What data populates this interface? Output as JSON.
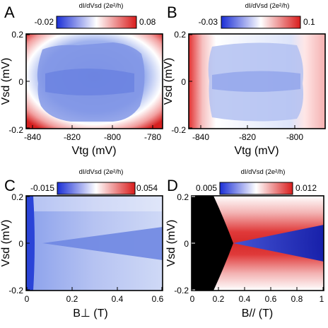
{
  "figure": {
    "panel_labels": [
      "A",
      "B",
      "C",
      "D"
    ],
    "colormap": {
      "low": "#1b2fd6",
      "mid": "#ffffff",
      "high": "#d91c1c"
    }
  },
  "chart_data": [
    {
      "panel": "A",
      "type": "heatmap",
      "colorbar_title": "dI/dVsd (2e²/h)",
      "colorbar_min": "-0.02",
      "colorbar_max": "0.08",
      "xlabel": "Vtg (mV)",
      "ylabel": "Vsd (mV)",
      "xlim": [
        -845,
        -777
      ],
      "ylim": [
        -0.2,
        0.2
      ],
      "xticks": [
        "-840",
        "-820",
        "-800",
        "-780"
      ],
      "yticks": [
        "0.2",
        "0",
        "-0.2"
      ],
      "feature": {
        "kind": "gap_region",
        "x_range": [
          -833,
          -788
        ],
        "half_width_at_center": 0.14,
        "half_width_at_edges": 0.08
      }
    },
    {
      "panel": "B",
      "type": "heatmap",
      "colorbar_title": "dI/dVsd (2e²/h)",
      "colorbar_min": "-0.03",
      "colorbar_max": "0.1",
      "xlabel": "Vtg (mV)",
      "ylabel": "Vsd (mV)",
      "xlim": [
        -848,
        -790
      ],
      "ylim": [
        -0.2,
        0.2
      ],
      "xticks": [
        "-840",
        "-820",
        "-800"
      ],
      "yticks": [
        "0.2",
        "0",
        "-0.2"
      ],
      "feature": {
        "kind": "gap_region",
        "x_range": [
          -838,
          -798
        ],
        "half_width_at_center": 0.15,
        "half_width_at_edges": 0.1
      }
    },
    {
      "panel": "C",
      "type": "heatmap",
      "colorbar_title": "dI/dVsd (2e²/h)",
      "colorbar_min": "-0.015",
      "colorbar_max": "0.054",
      "xlabel": "B⊥ (T)",
      "ylabel": "Vsd (mV)",
      "xlim": [
        0,
        0.6
      ],
      "ylim": [
        -0.2,
        0.2
      ],
      "xticks": [
        "0",
        "0.2",
        "0.4",
        "0.6"
      ],
      "yticks": [
        "0.2",
        "0",
        "-0.2"
      ],
      "feature": {
        "kind": "wedge",
        "apex_B": 0.05,
        "half_width_at_0.6T": 0.075
      }
    },
    {
      "panel": "D",
      "type": "heatmap",
      "colorbar_title": "dI/dVsd (2e²/h)",
      "colorbar_min": "0.005",
      "colorbar_max": "0.012",
      "xlabel": "B// (T)",
      "ylabel": "Vsd (mV)",
      "xlim": [
        0,
        1
      ],
      "ylim": [
        -0.2,
        0.2
      ],
      "xticks": [
        "0",
        "0.2",
        "0.4",
        "0.6",
        "0.8",
        "1"
      ],
      "yticks": [
        "0.2",
        "0",
        "-0.2"
      ],
      "feature": {
        "kind": "masked_region_then_wedge",
        "mask_edge_B_at_zero_bias": 0.31,
        "mask_edge_B_at_edges": 0.05,
        "wedge_half_width_at_1T": 0.03
      }
    }
  ]
}
